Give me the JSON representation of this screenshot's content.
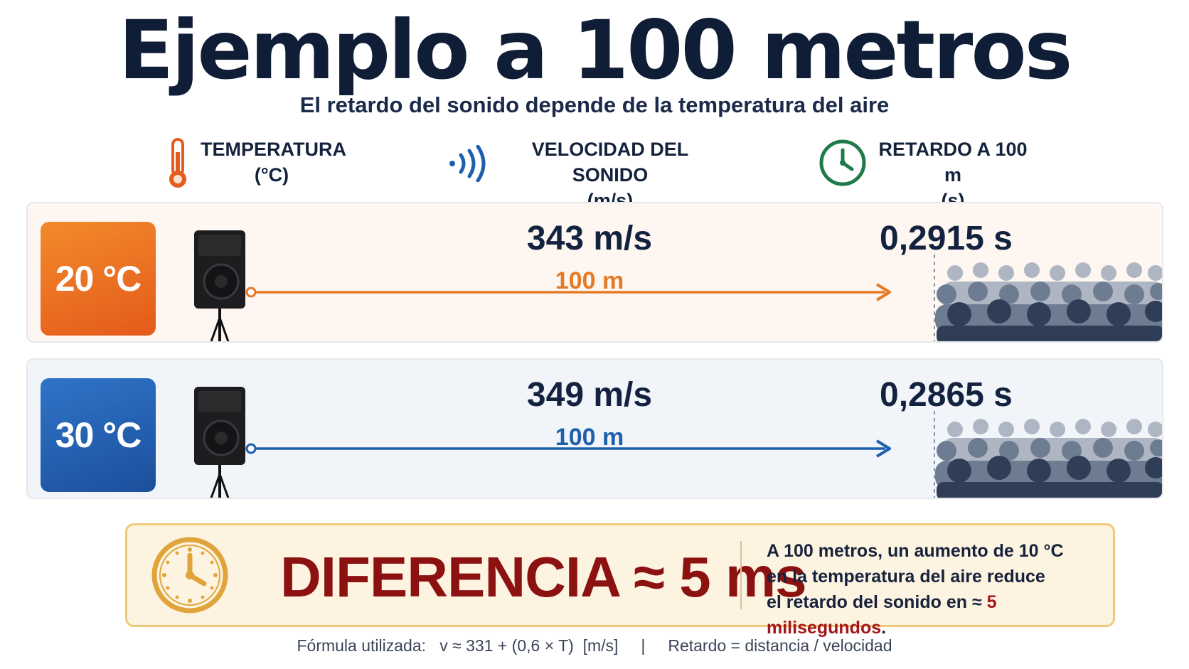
{
  "title": "Ejemplo a 100 metros",
  "subtitle": "El retardo del sonido depende de la temperatura del aire",
  "columns": [
    {
      "icon": "thermometer-icon",
      "label": "TEMPERATURA",
      "unit": "(°C)"
    },
    {
      "icon": "sound-waves-icon",
      "label": "VELOCIDAD DEL SONIDO",
      "unit": "(m/s)"
    },
    {
      "icon": "clock-icon",
      "label": "RETARDO A 100 m",
      "unit": "(s)"
    }
  ],
  "rows": [
    {
      "temperature": "20 °C",
      "speed": "343 m/s",
      "distance": "100 m",
      "delay": "0,2915 s",
      "color": "#e57a25"
    },
    {
      "temperature": "30 °C",
      "speed": "349 m/s",
      "distance": "100 m",
      "delay": "0,2865 s",
      "color": "#1f5fad"
    }
  ],
  "difference": {
    "headline": "DIFERENCIA ≈ 5 ms",
    "note_line1": "A 100 metros, un aumento de 10 °C",
    "note_line2": "en la temperatura del aire reduce",
    "note_line3_prefix": "el retardo del sonido en ≈ ",
    "note_highlight": "5 milisegundos",
    "note_suffix": "."
  },
  "formula": {
    "label": "Fórmula utilizada:",
    "speed_formula": "v ≈ 331 + (0,6 × T)  [m/s]",
    "separator": "|",
    "delay_formula": "Retardo = distancia / velocidad"
  },
  "colors": {
    "warm": "#e57a25",
    "cool": "#1f5fad",
    "diff": "#8c1111",
    "clock": "#e0a53a",
    "green": "#1f7a4a"
  }
}
